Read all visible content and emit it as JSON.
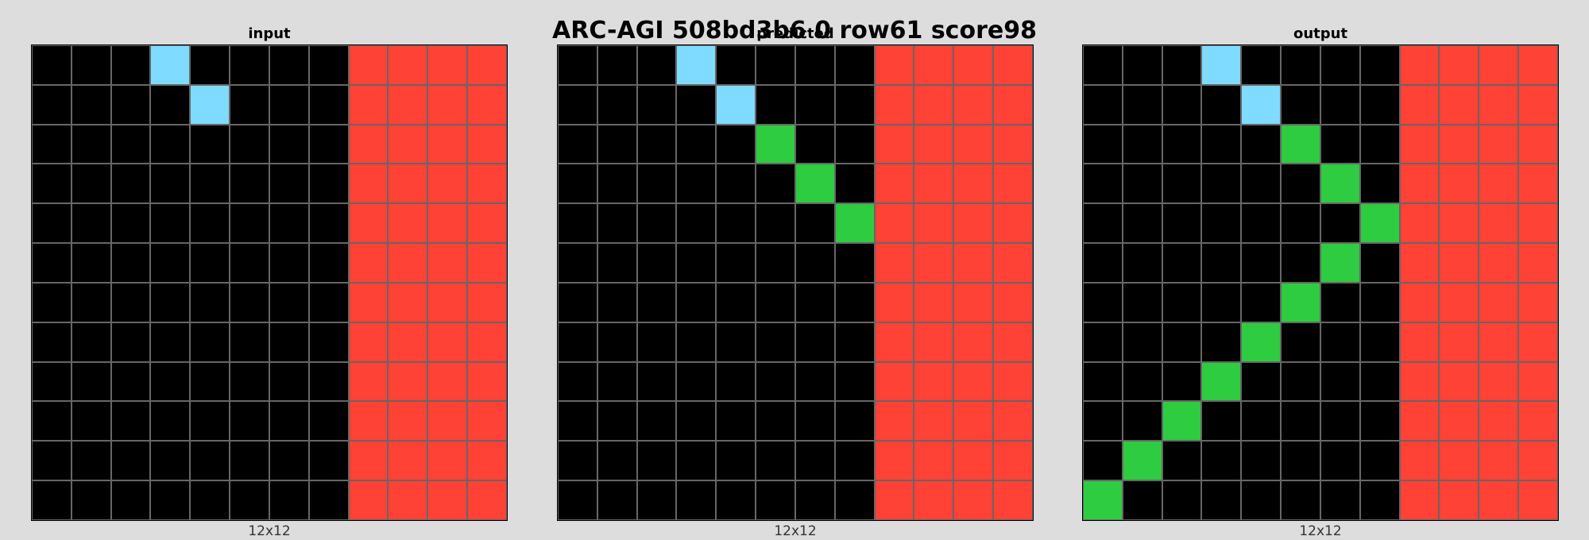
{
  "title": "ARC-AGI 508bd3b6 0 row61 score98",
  "palette": {
    "0": "#000000",
    "2": "#ff4136",
    "3": "#2ecc40",
    "8": "#7fdbff"
  },
  "panels": [
    {
      "label": "input",
      "dims": "12x12",
      "grid": [
        [
          0,
          0,
          0,
          8,
          0,
          0,
          0,
          0,
          2,
          2,
          2,
          2
        ],
        [
          0,
          0,
          0,
          0,
          8,
          0,
          0,
          0,
          2,
          2,
          2,
          2
        ],
        [
          0,
          0,
          0,
          0,
          0,
          0,
          0,
          0,
          2,
          2,
          2,
          2
        ],
        [
          0,
          0,
          0,
          0,
          0,
          0,
          0,
          0,
          2,
          2,
          2,
          2
        ],
        [
          0,
          0,
          0,
          0,
          0,
          0,
          0,
          0,
          2,
          2,
          2,
          2
        ],
        [
          0,
          0,
          0,
          0,
          0,
          0,
          0,
          0,
          2,
          2,
          2,
          2
        ],
        [
          0,
          0,
          0,
          0,
          0,
          0,
          0,
          0,
          2,
          2,
          2,
          2
        ],
        [
          0,
          0,
          0,
          0,
          0,
          0,
          0,
          0,
          2,
          2,
          2,
          2
        ],
        [
          0,
          0,
          0,
          0,
          0,
          0,
          0,
          0,
          2,
          2,
          2,
          2
        ],
        [
          0,
          0,
          0,
          0,
          0,
          0,
          0,
          0,
          2,
          2,
          2,
          2
        ],
        [
          0,
          0,
          0,
          0,
          0,
          0,
          0,
          0,
          2,
          2,
          2,
          2
        ],
        [
          0,
          0,
          0,
          0,
          0,
          0,
          0,
          0,
          2,
          2,
          2,
          2
        ]
      ]
    },
    {
      "label": "predicted",
      "dims": "12x12",
      "grid": [
        [
          0,
          0,
          0,
          8,
          0,
          0,
          0,
          0,
          2,
          2,
          2,
          2
        ],
        [
          0,
          0,
          0,
          0,
          8,
          0,
          0,
          0,
          2,
          2,
          2,
          2
        ],
        [
          0,
          0,
          0,
          0,
          0,
          3,
          0,
          0,
          2,
          2,
          2,
          2
        ],
        [
          0,
          0,
          0,
          0,
          0,
          0,
          3,
          0,
          2,
          2,
          2,
          2
        ],
        [
          0,
          0,
          0,
          0,
          0,
          0,
          0,
          3,
          2,
          2,
          2,
          2
        ],
        [
          0,
          0,
          0,
          0,
          0,
          0,
          0,
          0,
          2,
          2,
          2,
          2
        ],
        [
          0,
          0,
          0,
          0,
          0,
          0,
          0,
          0,
          2,
          2,
          2,
          2
        ],
        [
          0,
          0,
          0,
          0,
          0,
          0,
          0,
          0,
          2,
          2,
          2,
          2
        ],
        [
          0,
          0,
          0,
          0,
          0,
          0,
          0,
          0,
          2,
          2,
          2,
          2
        ],
        [
          0,
          0,
          0,
          0,
          0,
          0,
          0,
          0,
          2,
          2,
          2,
          2
        ],
        [
          0,
          0,
          0,
          0,
          0,
          0,
          0,
          0,
          2,
          2,
          2,
          2
        ],
        [
          0,
          0,
          0,
          0,
          0,
          0,
          0,
          0,
          2,
          2,
          2,
          2
        ]
      ]
    },
    {
      "label": "output",
      "dims": "12x12",
      "grid": [
        [
          0,
          0,
          0,
          8,
          0,
          0,
          0,
          0,
          2,
          2,
          2,
          2
        ],
        [
          0,
          0,
          0,
          0,
          8,
          0,
          0,
          0,
          2,
          2,
          2,
          2
        ],
        [
          0,
          0,
          0,
          0,
          0,
          3,
          0,
          0,
          2,
          2,
          2,
          2
        ],
        [
          0,
          0,
          0,
          0,
          0,
          0,
          3,
          0,
          2,
          2,
          2,
          2
        ],
        [
          0,
          0,
          0,
          0,
          0,
          0,
          0,
          3,
          2,
          2,
          2,
          2
        ],
        [
          0,
          0,
          0,
          0,
          0,
          0,
          3,
          0,
          2,
          2,
          2,
          2
        ],
        [
          0,
          0,
          0,
          0,
          0,
          3,
          0,
          0,
          2,
          2,
          2,
          2
        ],
        [
          0,
          0,
          0,
          0,
          3,
          0,
          0,
          0,
          2,
          2,
          2,
          2
        ],
        [
          0,
          0,
          0,
          3,
          0,
          0,
          0,
          0,
          2,
          2,
          2,
          2
        ],
        [
          0,
          0,
          3,
          0,
          0,
          0,
          0,
          0,
          2,
          2,
          2,
          2
        ],
        [
          0,
          3,
          0,
          0,
          0,
          0,
          0,
          0,
          2,
          2,
          2,
          2
        ],
        [
          3,
          0,
          0,
          0,
          0,
          0,
          0,
          0,
          2,
          2,
          2,
          2
        ]
      ]
    }
  ]
}
